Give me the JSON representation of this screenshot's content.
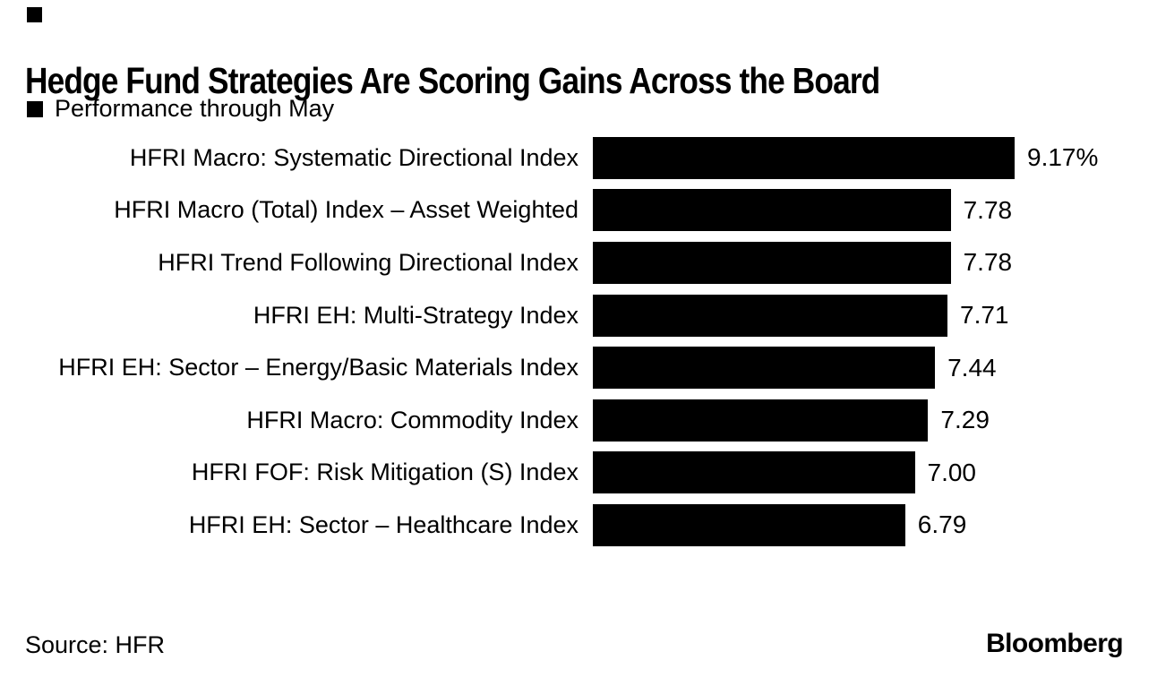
{
  "title": "Hedge Fund Strategies Are Scoring Gains Across the Board",
  "legend": {
    "marker": "black-square",
    "label": "Performance through May"
  },
  "chart_data": {
    "type": "bar",
    "orientation": "horizontal",
    "title": "Hedge Fund Strategies Are Scoring Gains Across the Board",
    "legend_entries": [
      "Performance through May"
    ],
    "categories": [
      "HFRI Macro: Systematic Directional Index",
      "HFRI Macro (Total) Index – Asset Weighted",
      "HFRI Trend Following Directional Index",
      "HFRI EH: Multi-Strategy Index",
      "HFRI EH: Sector – Energy/Basic Materials Index",
      "HFRI Macro: Commodity Index",
      "HFRI FOF: Risk Mitigation (S) Index",
      "HFRI EH: Sector – Healthcare Index"
    ],
    "values": [
      9.17,
      7.78,
      7.78,
      7.71,
      7.44,
      7.29,
      7.0,
      6.79
    ],
    "value_labels": [
      "9.17%",
      "7.78",
      "7.78",
      "7.71",
      "7.44",
      "7.29",
      "7.00",
      "6.79"
    ],
    "unit": "percent",
    "xlim": [
      0,
      9.17
    ],
    "grid": false,
    "bar_color": "#000000",
    "legend_position": "top-left"
  },
  "source": {
    "label": "Source: HFR"
  },
  "branding": {
    "logo_text": "Bloomberg"
  },
  "colors": {
    "bar": "#000000",
    "background": "#ffffff",
    "text": "#000000"
  }
}
